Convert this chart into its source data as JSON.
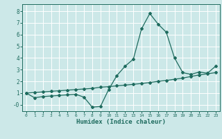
{
  "xlabel": "Humidex (Indice chaleur)",
  "x": [
    0,
    1,
    2,
    3,
    4,
    5,
    6,
    7,
    8,
    9,
    10,
    11,
    12,
    13,
    14,
    15,
    16,
    17,
    18,
    19,
    20,
    21,
    22,
    23
  ],
  "line1_y": [
    1.0,
    0.6,
    0.7,
    0.75,
    0.8,
    0.85,
    0.9,
    0.65,
    -0.2,
    -0.15,
    1.3,
    2.5,
    3.3,
    3.9,
    6.5,
    7.8,
    6.9,
    6.2,
    4.0,
    2.75,
    2.6,
    2.8,
    2.7,
    3.3
  ],
  "line2_y": [
    1.0,
    1.05,
    1.1,
    1.15,
    1.2,
    1.25,
    1.3,
    1.35,
    1.4,
    1.5,
    1.55,
    1.62,
    1.68,
    1.75,
    1.82,
    1.9,
    2.0,
    2.08,
    2.18,
    2.28,
    2.42,
    2.55,
    2.65,
    2.75
  ],
  "line_color": "#1e6b5e",
  "bg_color": "#cce8e8",
  "grid_color": "#ffffff",
  "ylim": [
    -0.55,
    8.6
  ],
  "xlim": [
    -0.5,
    23.5
  ],
  "yticks": [
    0,
    1,
    2,
    3,
    4,
    5,
    6,
    7,
    8
  ],
  "ytick_labels": [
    "-0",
    "1",
    "2",
    "3",
    "4",
    "5",
    "6",
    "7",
    "8"
  ],
  "xticks": [
    0,
    1,
    2,
    3,
    4,
    5,
    6,
    7,
    8,
    9,
    10,
    11,
    12,
    13,
    14,
    15,
    16,
    17,
    18,
    19,
    20,
    21,
    22,
    23
  ]
}
